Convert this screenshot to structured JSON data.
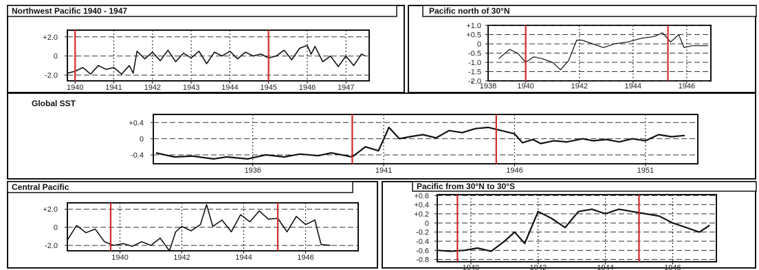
{
  "colors": {
    "ink": "#111111",
    "marker": "#d42a2a",
    "grid": "#333333"
  },
  "chart_data": [
    {
      "id": "nw",
      "type": "line",
      "title": "Northwest Pacific 1940 - 1947",
      "xlim": [
        1939.8,
        1947.6
      ],
      "ylim": [
        -2.6,
        2.7
      ],
      "x_ticks": [
        1940,
        1941,
        1942,
        1943,
        1944,
        1945,
        1946,
        1947
      ],
      "y_ticks": [
        {
          "v": 2.0,
          "label": "+2.0"
        },
        {
          "v": 0,
          "label": "0"
        },
        {
          "v": -2.0,
          "label": "-2.0"
        }
      ],
      "markers": [
        1940.0,
        1945.0
      ],
      "grid": true,
      "series": [
        {
          "x": [
            1939.8,
            1940.0,
            1940.2,
            1940.4,
            1940.6,
            1940.8,
            1941.0,
            1941.2,
            1941.4,
            1941.5,
            1941.6,
            1941.8,
            1942.0,
            1942.2,
            1942.4,
            1942.6,
            1942.8,
            1943.0,
            1943.2,
            1943.4,
            1943.6,
            1943.8,
            1944.0,
            1944.2,
            1944.4,
            1944.6,
            1944.8,
            1945.0,
            1945.2,
            1945.4,
            1945.6,
            1945.8,
            1946.0,
            1946.1,
            1946.2,
            1946.4,
            1946.6,
            1946.8,
            1947.0,
            1947.2,
            1947.4,
            1947.5
          ],
          "y": [
            -1.8,
            -1.6,
            -1.2,
            -1.9,
            -1.0,
            -1.4,
            -1.2,
            -1.9,
            -1.0,
            -1.8,
            0.5,
            -0.3,
            0.4,
            -0.5,
            0.6,
            -0.6,
            0.3,
            -0.2,
            0.5,
            -0.8,
            0.4,
            0.0,
            0.5,
            -0.3,
            0.4,
            0.0,
            0.2,
            -0.2,
            0.0,
            0.6,
            -0.4,
            0.8,
            1.1,
            0.2,
            1.0,
            -0.6,
            0.0,
            -1.1,
            0.0,
            -1.0,
            0.2,
            0.0
          ]
        }
      ]
    },
    {
      "id": "pn30",
      "type": "line",
      "title": "Pacific north of 30°N",
      "xlim": [
        1938.6,
        1946.9
      ],
      "ylim": [
        -2.0,
        1.0
      ],
      "x_ticks": [
        {
          "v": 1938,
          "label": "1938"
        },
        {
          "v": 1940,
          "label": "1940"
        },
        {
          "v": 1942,
          "label": "1942"
        },
        {
          "v": 1944,
          "label": "1944"
        },
        {
          "v": 1946,
          "label": "1946"
        }
      ],
      "y_ticks": [
        {
          "v": 1.0,
          "label": "+1.0"
        },
        {
          "v": 0.5,
          "label": "+0.5"
        },
        {
          "v": 0,
          "label": "0"
        },
        {
          "v": -0.5,
          "label": "-0.5"
        },
        {
          "v": -1.0,
          "label": "-1.0"
        },
        {
          "v": -1.5,
          "label": "-1.5"
        },
        {
          "v": -2.0,
          "label": "-2.0"
        }
      ],
      "markers": [
        1940.0,
        1945.3
      ],
      "grid": true,
      "series": [
        {
          "x": [
            1939.0,
            1939.4,
            1939.7,
            1940.0,
            1940.3,
            1940.6,
            1941.0,
            1941.3,
            1941.6,
            1941.9,
            1942.1,
            1942.5,
            1942.9,
            1943.3,
            1943.8,
            1944.3,
            1944.8,
            1945.1,
            1945.4,
            1945.7,
            1945.9,
            1946.2,
            1946.5,
            1946.8
          ],
          "y": [
            -0.8,
            -0.3,
            -0.5,
            -1.0,
            -0.7,
            -0.8,
            -1.0,
            -1.4,
            -0.9,
            0.2,
            0.2,
            0.0,
            -0.2,
            0.0,
            0.1,
            0.3,
            0.4,
            0.6,
            0.1,
            0.5,
            -0.2,
            -0.1,
            -0.1,
            -0.1
          ]
        }
      ]
    },
    {
      "id": "global",
      "type": "line",
      "title": "Global SST",
      "xlim": [
        1932.2,
        1953.0
      ],
      "ylim": [
        -0.62,
        0.6
      ],
      "x_ticks": [
        1936,
        1941,
        1946,
        1951
      ],
      "y_ticks": [
        {
          "v": 0.4,
          "label": "+0.4"
        },
        {
          "v": 0,
          "label": "0"
        },
        {
          "v": -0.4,
          "label": "-0.4"
        }
      ],
      "markers": [
        1939.8,
        1945.3
      ],
      "grid": true,
      "series": [
        {
          "x": [
            1932.3,
            1933.0,
            1933.7,
            1934.5,
            1935.0,
            1935.8,
            1936.5,
            1937.2,
            1937.8,
            1938.5,
            1939.0,
            1939.8,
            1940.3,
            1940.8,
            1941.2,
            1941.6,
            1942.0,
            1942.5,
            1943.0,
            1943.5,
            1944.0,
            1944.5,
            1945.0,
            1945.5,
            1946.0,
            1946.3,
            1946.7,
            1947.0,
            1947.5,
            1948.0,
            1948.6,
            1949.0,
            1949.5,
            1950.0,
            1950.5,
            1951.0,
            1951.5,
            1952.0,
            1952.5
          ],
          "y": [
            -0.35,
            -0.45,
            -0.43,
            -0.5,
            -0.45,
            -0.5,
            -0.4,
            -0.45,
            -0.38,
            -0.42,
            -0.35,
            -0.45,
            -0.2,
            -0.3,
            0.28,
            0.0,
            0.05,
            0.1,
            0.02,
            0.2,
            0.15,
            0.25,
            0.28,
            0.2,
            0.12,
            -0.1,
            -0.02,
            -0.12,
            -0.05,
            -0.08,
            0.0,
            -0.05,
            -0.02,
            -0.08,
            0.0,
            -0.05,
            0.1,
            0.05,
            0.08
          ]
        }
      ]
    },
    {
      "id": "central",
      "type": "line",
      "title": "Central Pacific",
      "xlim": [
        1938.3,
        1947.7
      ],
      "ylim": [
        -2.6,
        2.7
      ],
      "x_ticks": [
        1940,
        1942,
        1944,
        1946
      ],
      "y_ticks": [
        {
          "v": 2.0,
          "label": "+2.0"
        },
        {
          "v": 0,
          "label": "0"
        },
        {
          "v": -2.0,
          "label": "-2.0"
        }
      ],
      "markers": [
        1939.7,
        1945.1
      ],
      "grid": true,
      "series": [
        {
          "x": [
            1938.3,
            1938.6,
            1938.9,
            1939.2,
            1939.5,
            1939.8,
            1940.1,
            1940.4,
            1940.7,
            1941.0,
            1941.3,
            1941.6,
            1941.8,
            1942.0,
            1942.3,
            1942.6,
            1942.8,
            1943.0,
            1943.3,
            1943.6,
            1943.9,
            1944.2,
            1944.5,
            1944.8,
            1945.1,
            1945.4,
            1945.7,
            1946.0,
            1946.3,
            1946.5,
            1946.8
          ],
          "y": [
            -1.4,
            0.2,
            -0.6,
            -0.2,
            -1.6,
            -2.0,
            -1.8,
            -2.1,
            -1.6,
            -2.0,
            -1.2,
            -2.6,
            -0.5,
            0.1,
            -0.4,
            0.3,
            2.5,
            0.1,
            0.8,
            -0.5,
            1.4,
            0.6,
            1.8,
            0.9,
            1.0,
            -0.5,
            1.2,
            0.3,
            0.8,
            -1.9,
            -2.0
          ]
        }
      ]
    },
    {
      "id": "tropics",
      "type": "line",
      "title": "Pacific from 30°N to 30°S",
      "xlim": [
        1939.0,
        1947.3
      ],
      "ylim": [
        -0.85,
        0.62
      ],
      "x_ticks": [
        1940,
        1942,
        1944,
        1946
      ],
      "y_ticks": [
        {
          "v": 0.6,
          "label": "+0.6"
        },
        {
          "v": 0.4,
          "label": "+0.4"
        },
        {
          "v": 0.2,
          "label": "+0.2"
        },
        {
          "v": 0,
          "label": "0"
        },
        {
          "v": -0.2,
          "label": "-0.2"
        },
        {
          "v": -0.4,
          "label": "-0.4"
        },
        {
          "v": -0.6,
          "label": "-0.6"
        },
        {
          "v": -0.8,
          "label": "-0.8"
        }
      ],
      "markers": [
        1939.6,
        1945.0
      ],
      "grid": true,
      "series": [
        {
          "x": [
            1939.0,
            1939.4,
            1939.8,
            1940.2,
            1940.6,
            1941.0,
            1941.3,
            1941.6,
            1942.0,
            1942.4,
            1942.8,
            1943.2,
            1943.6,
            1944.0,
            1944.4,
            1944.8,
            1945.2,
            1945.6,
            1946.0,
            1946.4,
            1946.8,
            1947.1
          ],
          "y": [
            -0.6,
            -0.62,
            -0.6,
            -0.55,
            -0.62,
            -0.4,
            -0.2,
            -0.45,
            0.25,
            0.1,
            -0.1,
            0.25,
            0.3,
            0.2,
            0.3,
            0.25,
            0.2,
            0.15,
            0.0,
            -0.1,
            -0.2,
            -0.05
          ]
        }
      ]
    }
  ]
}
